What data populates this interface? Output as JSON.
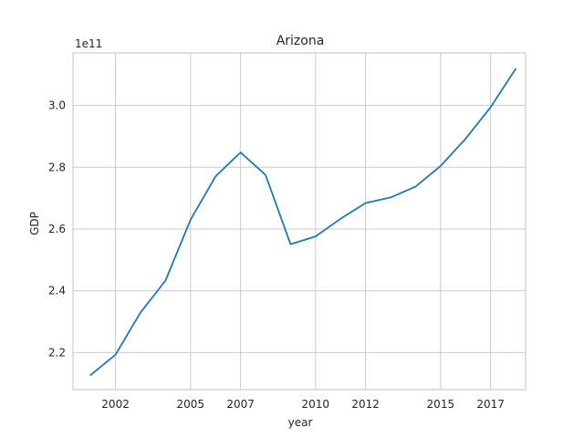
{
  "chart_data": {
    "type": "line",
    "title": "Arizona",
    "xlabel": "year",
    "ylabel": "GDP",
    "y_offset_label": "1e11",
    "grid": true,
    "line_color": "#1f77b4",
    "xlim": [
      2000.3,
      2018.4
    ],
    "ylim": [
      2.08,
      3.17
    ],
    "x_ticks": [
      2002,
      2005,
      2007,
      2010,
      2012,
      2015,
      2017
    ],
    "x_tick_labels": [
      "2002",
      "2005",
      "2007",
      "2010",
      "2012",
      "2015",
      "2017"
    ],
    "y_ticks": [
      2.2,
      2.4,
      2.6,
      2.8,
      3.0
    ],
    "y_tick_labels": [
      "2.2",
      "2.4",
      "2.6",
      "2.8",
      "3.0"
    ],
    "series": [
      {
        "x": [
          2001,
          2002,
          2003,
          2004,
          2005,
          2006,
          2007,
          2008,
          2009,
          2010,
          2011,
          2012,
          2013,
          2014,
          2015,
          2016,
          2017,
          2018
        ],
        "y": [
          2.127,
          2.193,
          2.33,
          2.433,
          2.63,
          2.77,
          2.848,
          2.775,
          2.551,
          2.576,
          2.633,
          2.684,
          2.702,
          2.737,
          2.804,
          2.892,
          2.994,
          3.118
        ]
      }
    ]
  }
}
